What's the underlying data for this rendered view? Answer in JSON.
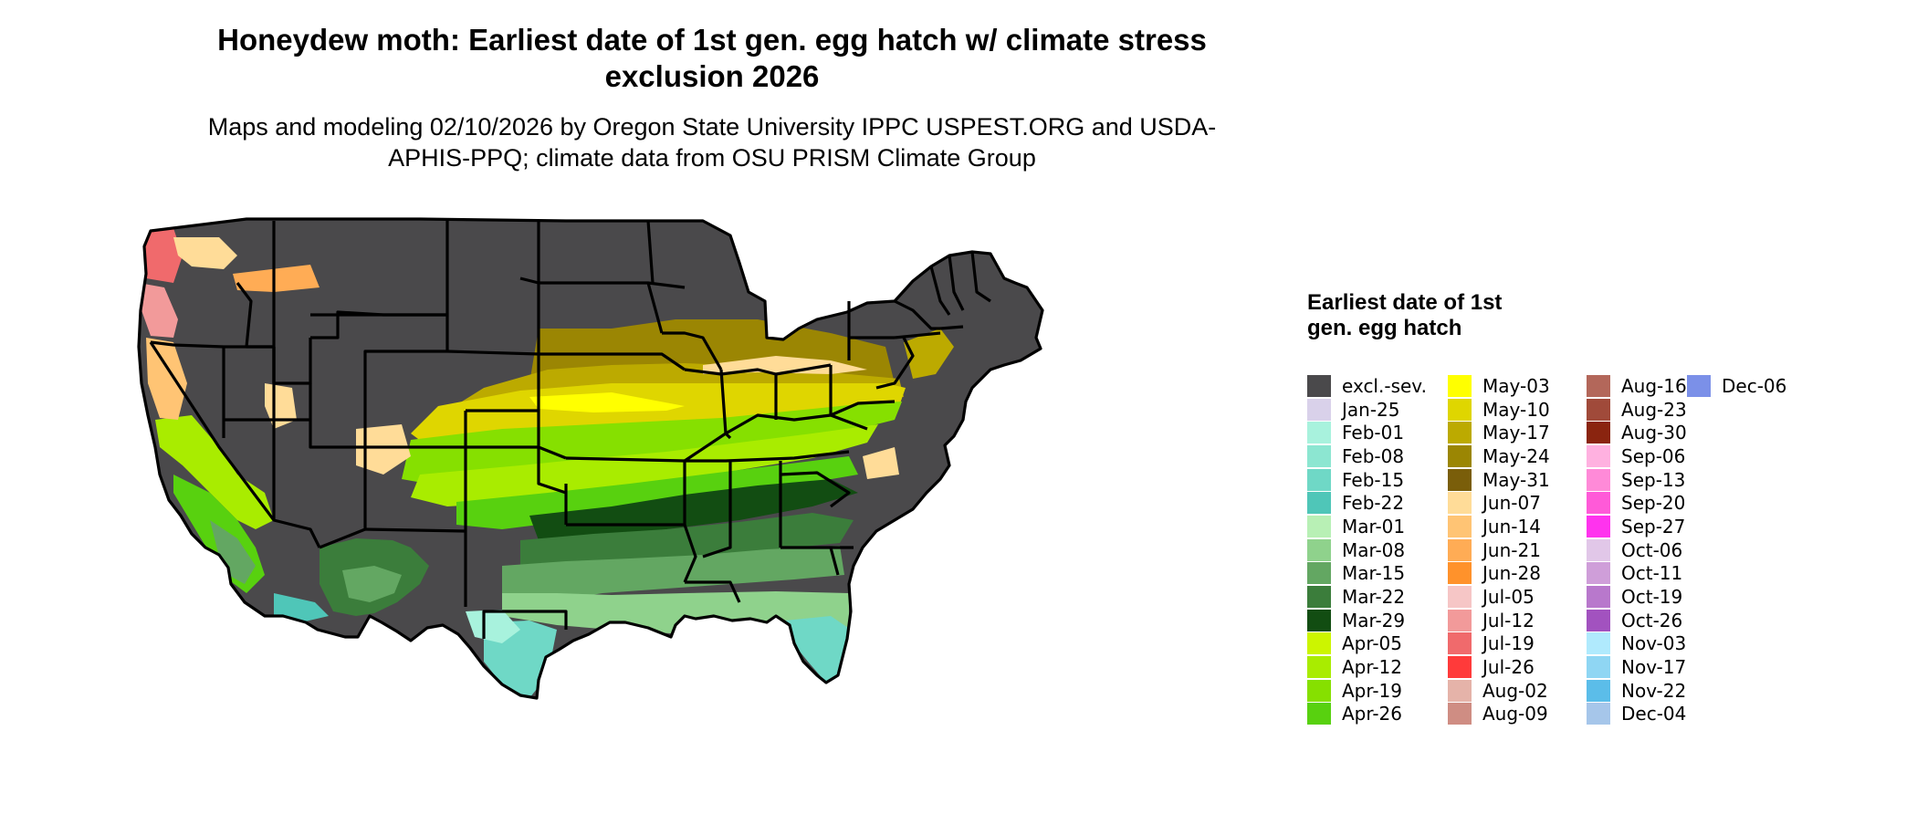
{
  "title": "Honeydew moth: Earliest date of 1st gen. egg hatch w/ climate stress exclusion 2026",
  "subtitle": "Maps and modeling 02/10/2026 by Oregon State University IPPC USPEST.ORG and USDA-APHIS-PPQ; climate data from OSU PRISM Climate Group",
  "legend": {
    "title": "Earliest date of 1st gen. egg hatch",
    "items": [
      {
        "label": "excl.-sev.",
        "color": "#4a494b"
      },
      {
        "label": "Jan-25",
        "color": "#d9d1ea"
      },
      {
        "label": "Feb-01",
        "color": "#a8f2dd"
      },
      {
        "label": "Feb-08",
        "color": "#8ce6d1"
      },
      {
        "label": "Feb-15",
        "color": "#6fd8c6"
      },
      {
        "label": "Feb-22",
        "color": "#4fc6b8"
      },
      {
        "label": "Mar-01",
        "color": "#b8f0b5"
      },
      {
        "label": "Mar-08",
        "color": "#8fd28c"
      },
      {
        "label": "Mar-15",
        "color": "#63a762"
      },
      {
        "label": "Mar-22",
        "color": "#3b7d3b"
      },
      {
        "label": "Mar-29",
        "color": "#124d12"
      },
      {
        "label": "Apr-05",
        "color": "#ccf500"
      },
      {
        "label": "Apr-12",
        "color": "#a9ec00"
      },
      {
        "label": "Apr-19",
        "color": "#86e000"
      },
      {
        "label": "Apr-26",
        "color": "#58d10f"
      },
      {
        "label": "May-03",
        "color": "#ffff00"
      },
      {
        "label": "May-10",
        "color": "#dfd600"
      },
      {
        "label": "May-17",
        "color": "#bcaa00"
      },
      {
        "label": "May-24",
        "color": "#9b8603"
      },
      {
        "label": "May-31",
        "color": "#7a5e0a"
      },
      {
        "label": "Jun-07",
        "color": "#ffdc98"
      },
      {
        "label": "Jun-14",
        "color": "#ffc474"
      },
      {
        "label": "Jun-21",
        "color": "#ffac55"
      },
      {
        "label": "Jun-28",
        "color": "#ff922b"
      },
      {
        "label": "Jul-05",
        "color": "#f6c6c6"
      },
      {
        "label": "Jul-12",
        "color": "#f29a9a"
      },
      {
        "label": "Jul-19",
        "color": "#f06a6c"
      },
      {
        "label": "Jul-26",
        "color": "#ff3a3a"
      },
      {
        "label": "Aug-02",
        "color": "#e5b3a9"
      },
      {
        "label": "Aug-09",
        "color": "#cf8d83"
      },
      {
        "label": "Aug-16",
        "color": "#b3675a"
      },
      {
        "label": "Aug-23",
        "color": "#a04a3a"
      },
      {
        "label": "Aug-30",
        "color": "#8a240f"
      },
      {
        "label": "Sep-06",
        "color": "#ffb1e0"
      },
      {
        "label": "Sep-13",
        "color": "#ff8ad8"
      },
      {
        "label": "Sep-20",
        "color": "#ff5ad8"
      },
      {
        "label": "Sep-27",
        "color": "#ff33ee"
      },
      {
        "label": "Oct-06",
        "color": "#e1c7e8"
      },
      {
        "label": "Oct-11",
        "color": "#cf9ed9"
      },
      {
        "label": "Oct-19",
        "color": "#b878cc"
      },
      {
        "label": "Oct-26",
        "color": "#a252bf"
      },
      {
        "label": "Nov-03",
        "color": "#b0eafd"
      },
      {
        "label": "Nov-17",
        "color": "#8fd6f3"
      },
      {
        "label": "Nov-22",
        "color": "#5bbde9"
      },
      {
        "label": "Dec-04",
        "color": "#a6c6ea"
      },
      {
        "label": "Dec-06",
        "color": "#7b90e8"
      }
    ]
  }
}
